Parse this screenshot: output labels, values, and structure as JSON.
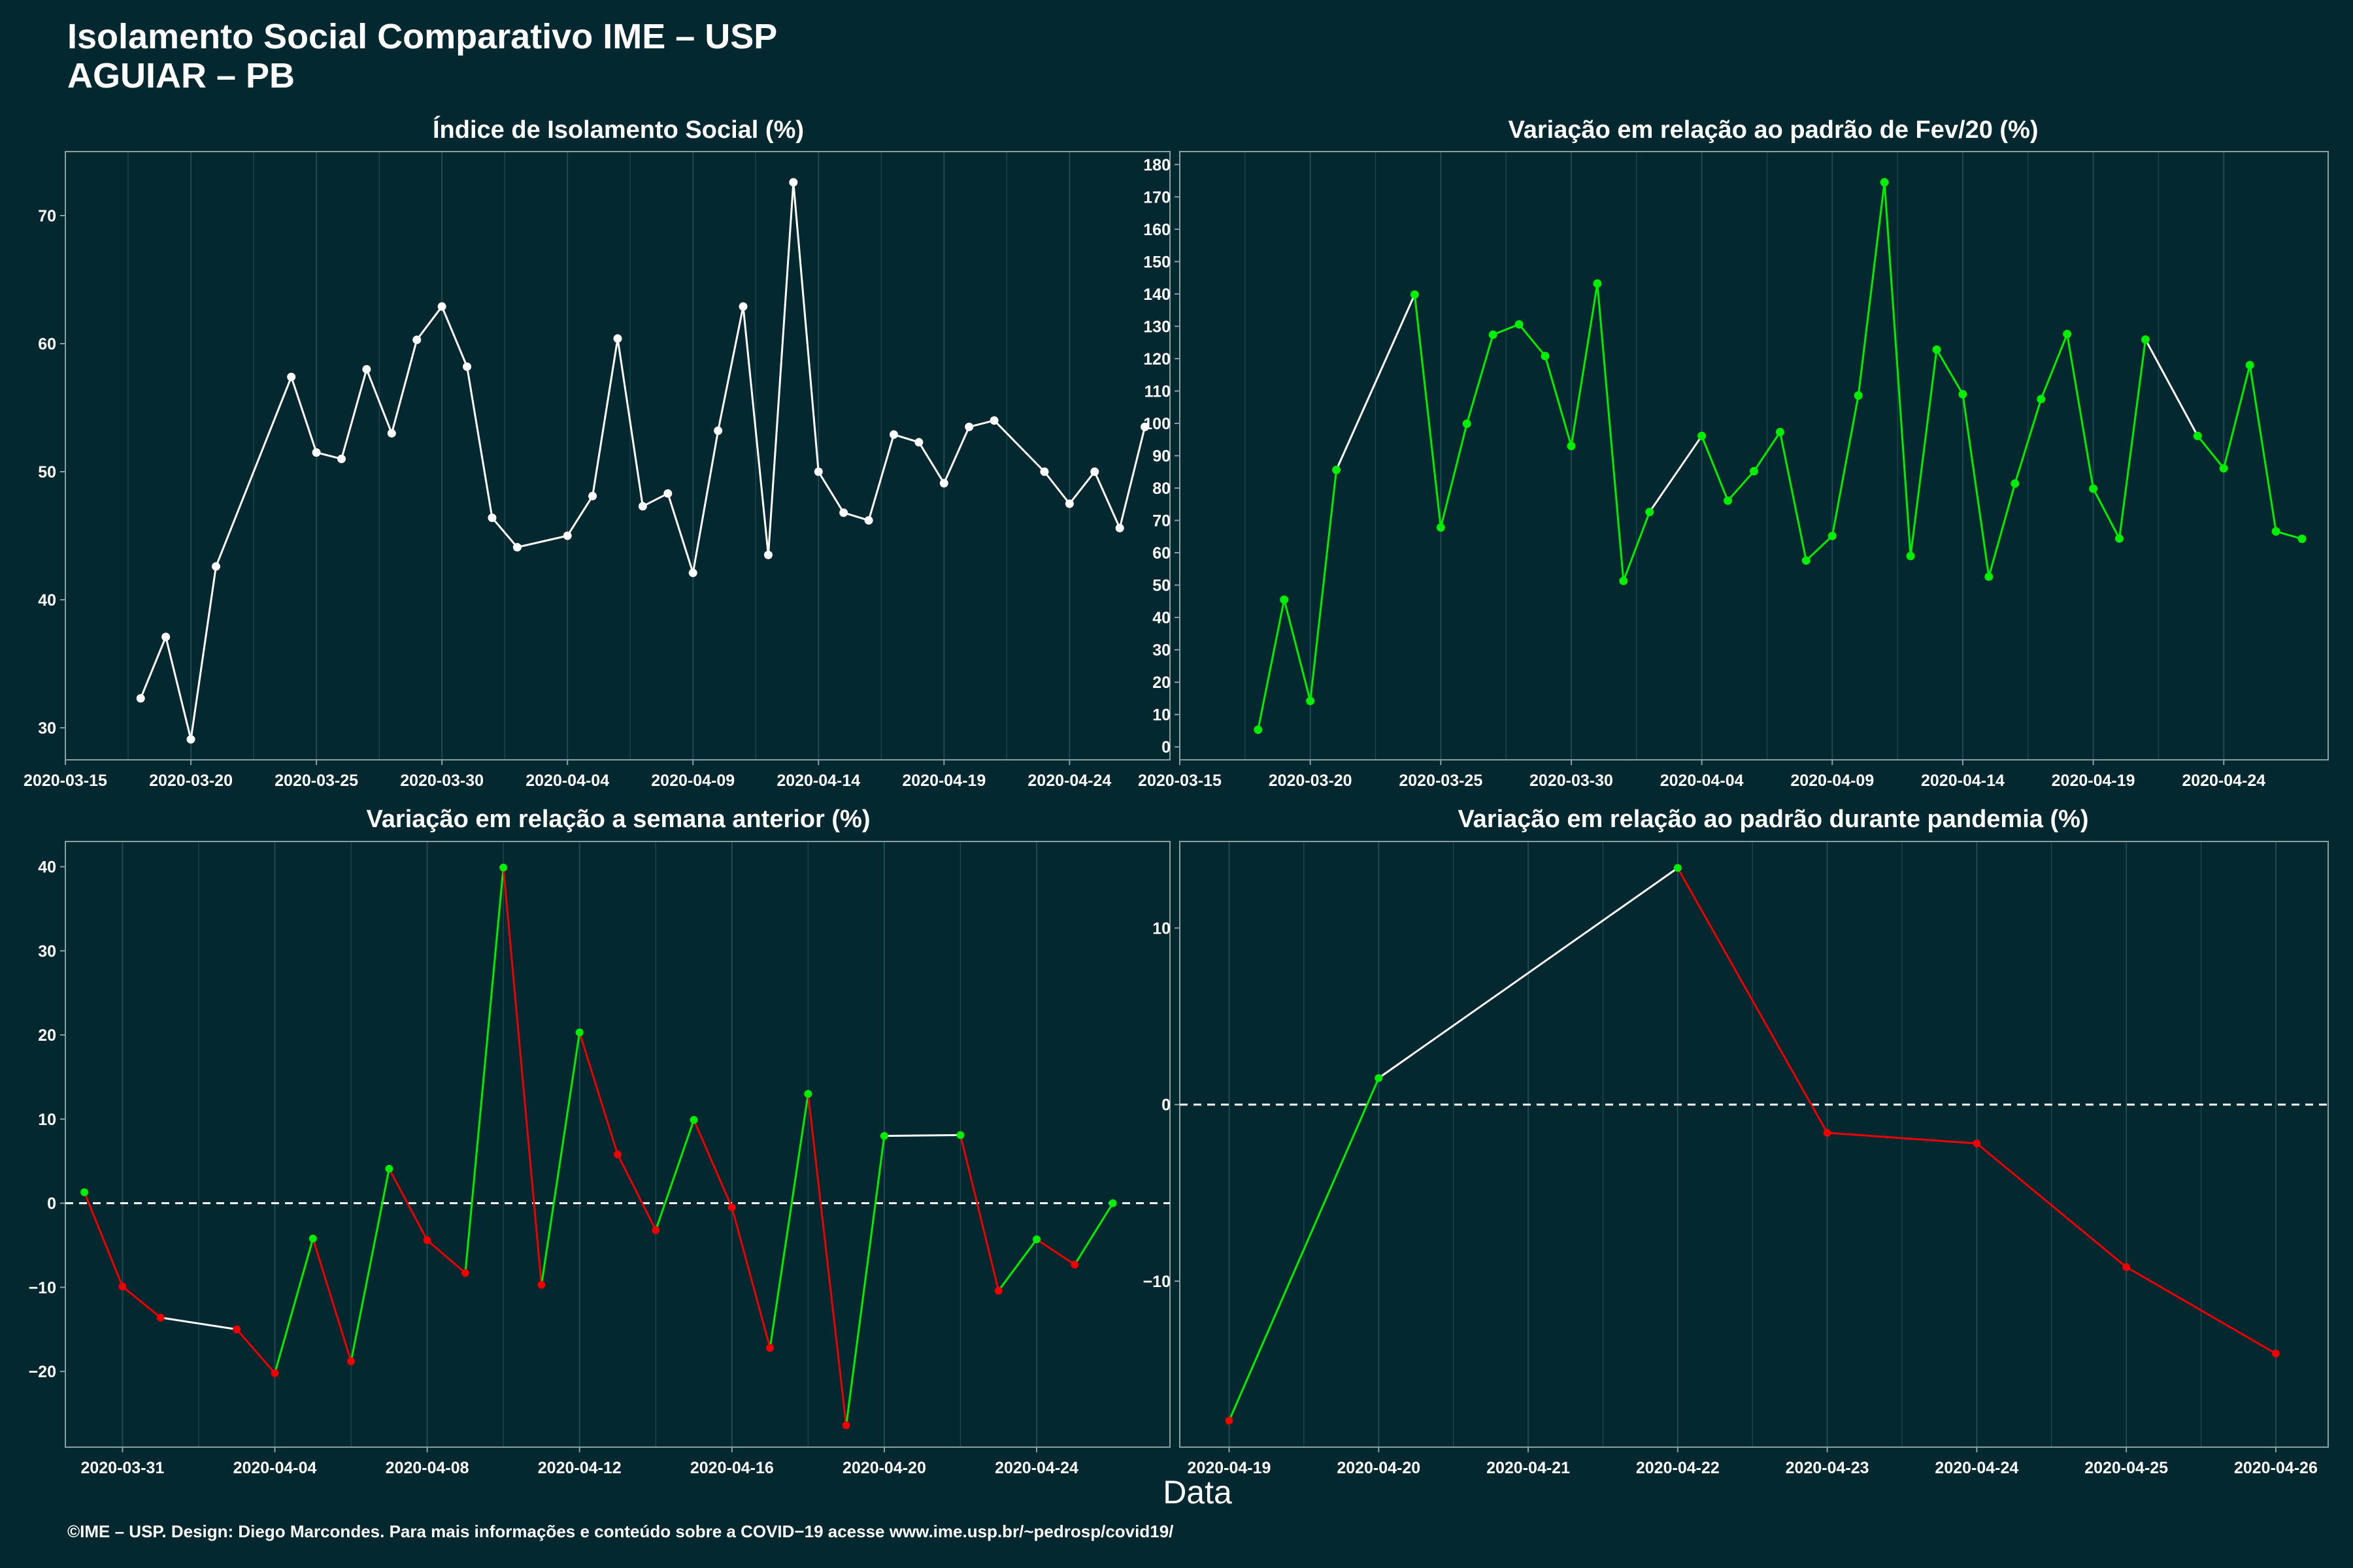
{
  "title": {
    "line1": "Isolamento Social Comparativo IME – USP",
    "line2": "AGUIAR – PB"
  },
  "xlabel": "Data",
  "footer": "©IME – USP. Design: Diego Marcondes. Para mais informações e conteúdo sobre a COVID−19 acesse www.ime.usp.br/~pedrosp/covid19/",
  "colors": {
    "background": "#04282f",
    "white": "#ffffff",
    "green": "#00ee00",
    "red": "#ee0000",
    "grid": "#1f4a52",
    "axis": "#8aa0a5"
  },
  "chart_data": [
    {
      "id": "p1",
      "type": "line",
      "title": "Índice de Isolamento Social (%)",
      "xlim": [
        "2020-03-15",
        "2020-04-28"
      ],
      "ylim": [
        27.5,
        75
      ],
      "yticks": [
        30,
        40,
        50,
        60,
        70
      ],
      "ytick_labels": [
        "30",
        "40",
        "50",
        "60",
        "70"
      ],
      "xticks": [
        "2020-03-15",
        "2020-03-20",
        "2020-03-25",
        "2020-03-30",
        "2020-04-04",
        "2020-04-09",
        "2020-04-14",
        "2020-04-19",
        "2020-04-24"
      ],
      "series": [
        {
          "x": [
            "2020-03-18",
            "2020-03-19",
            "2020-03-20",
            "2020-03-21",
            "2020-03-24",
            "2020-03-25",
            "2020-03-26",
            "2020-03-27",
            "2020-03-28",
            "2020-03-29",
            "2020-03-30",
            "2020-03-31",
            "2020-04-01",
            "2020-04-02",
            "2020-04-04",
            "2020-04-05",
            "2020-04-06",
            "2020-04-07",
            "2020-04-08",
            "2020-04-09",
            "2020-04-10",
            "2020-04-11",
            "2020-04-12",
            "2020-04-13",
            "2020-04-14",
            "2020-04-15",
            "2020-04-16",
            "2020-04-17",
            "2020-04-18",
            "2020-04-19",
            "2020-04-20",
            "2020-04-21",
            "2020-04-23",
            "2020-04-24",
            "2020-04-25",
            "2020-04-26",
            "2020-04-27"
          ],
          "y": [
            32.3,
            37.1,
            29.1,
            42.6,
            57.4,
            51.5,
            51.0,
            58.0,
            53.0,
            60.3,
            62.9,
            58.2,
            46.4,
            44.1,
            45.0,
            48.1,
            60.4,
            47.3,
            48.3,
            42.1,
            53.2,
            62.9,
            43.5,
            72.6,
            50.0,
            46.8,
            46.2,
            52.9,
            52.3,
            49.1,
            53.5,
            54.0,
            50.0,
            47.5,
            50.0,
            45.6,
            53.5
          ]
        }
      ]
    },
    {
      "id": "p2",
      "type": "line",
      "title": "Variação em relação ao padrão de Fev/20 (%)",
      "xlim": [
        "2020-03-15",
        "2020-04-28"
      ],
      "ylim": [
        -4,
        184
      ],
      "yticks": [
        0,
        10,
        20,
        30,
        40,
        50,
        60,
        70,
        80,
        90,
        100,
        110,
        120,
        130,
        140,
        150,
        160,
        170,
        180
      ],
      "ytick_labels": [
        "0",
        "10",
        "20",
        "30",
        "40",
        "50",
        "60",
        "70",
        "80",
        "90",
        "100",
        "110",
        "120",
        "130",
        "140",
        "150",
        "160",
        "170",
        "180"
      ],
      "xticks": [
        "2020-03-15",
        "2020-03-20",
        "2020-03-25",
        "2020-03-30",
        "2020-04-04",
        "2020-04-09",
        "2020-04-14",
        "2020-04-19",
        "2020-04-24"
      ],
      "series": [
        {
          "x": [
            "2020-03-18",
            "2020-03-19",
            "2020-03-20",
            "2020-03-21",
            "2020-03-24",
            "2020-03-25",
            "2020-03-26",
            "2020-03-27",
            "2020-03-28",
            "2020-03-29",
            "2020-03-30",
            "2020-03-31",
            "2020-04-01",
            "2020-04-02",
            "2020-04-04",
            "2020-04-05",
            "2020-04-06",
            "2020-04-07",
            "2020-04-08",
            "2020-04-09",
            "2020-04-10",
            "2020-04-11",
            "2020-04-12",
            "2020-04-13",
            "2020-04-14",
            "2020-04-15",
            "2020-04-16",
            "2020-04-17",
            "2020-04-18",
            "2020-04-19",
            "2020-04-20",
            "2020-04-21",
            "2020-04-23",
            "2020-04-24",
            "2020-04-25",
            "2020-04-26",
            "2020-04-27"
          ],
          "y": [
            5.3,
            45.5,
            14.2,
            85.6,
            139.8,
            67.8,
            99.9,
            127.4,
            130.6,
            120.8,
            93.0,
            143.2,
            51.3,
            72.6,
            96.1,
            76.1,
            85.2,
            97.3,
            57.6,
            65.2,
            108.6,
            174.5,
            59.0,
            122.8,
            109.0,
            52.6,
            81.4,
            107.5,
            127.6,
            79.8,
            64.4,
            125.9,
            96.1,
            86.1,
            118.0,
            66.6,
            64.3
          ]
        }
      ]
    },
    {
      "id": "p3",
      "type": "line",
      "title": "Variação em relação a semana anterior (%)",
      "xlim": [
        "2020-03-29.5",
        "2020-04-27.5"
      ],
      "ylim": [
        -29,
        43
      ],
      "yticks": [
        -20,
        -10,
        0,
        10,
        20,
        30,
        40
      ],
      "ytick_labels": [
        "−20",
        "−10",
        "0",
        "10",
        "20",
        "30",
        "40"
      ],
      "xticks": [
        "2020-03-31",
        "2020-04-04",
        "2020-04-08",
        "2020-04-12",
        "2020-04-16",
        "2020-04-20",
        "2020-04-24"
      ],
      "series": [
        {
          "x": [
            "2020-03-30",
            "2020-03-31",
            "2020-04-01",
            "2020-04-03",
            "2020-04-04",
            "2020-04-05",
            "2020-04-06",
            "2020-04-07",
            "2020-04-08",
            "2020-04-09",
            "2020-04-10",
            "2020-04-11",
            "2020-04-12",
            "2020-04-13",
            "2020-04-14",
            "2020-04-15",
            "2020-04-16",
            "2020-04-17",
            "2020-04-18",
            "2020-04-19",
            "2020-04-20",
            "2020-04-22",
            "2020-04-23",
            "2020-04-24",
            "2020-04-25",
            "2020-04-26"
          ],
          "y": [
            1.3,
            -9.9,
            -13.6,
            -15.0,
            -20.2,
            -4.2,
            -18.8,
            4.1,
            -4.4,
            -8.3,
            39.9,
            -9.7,
            20.3,
            5.8,
            -3.2,
            9.9,
            -0.5,
            -17.2,
            13.0,
            -26.4,
            8.0,
            8.1,
            -10.4,
            -4.3,
            -7.3,
            0.0
          ]
        }
      ],
      "hline": 0
    },
    {
      "id": "p4",
      "type": "line",
      "title": "Variação em relação ao padrão durante pandemia (%)",
      "xlim": [
        "2020-04-18.67",
        "2020-04-26.35"
      ],
      "ylim": [
        -19.4,
        14.9
      ],
      "yticks": [
        -10,
        0,
        10
      ],
      "ytick_labels": [
        "−10",
        "0",
        "10"
      ],
      "xticks": [
        "2020-04-19",
        "2020-04-20",
        "2020-04-21",
        "2020-04-22",
        "2020-04-23",
        "2020-04-24",
        "2020-04-25",
        "2020-04-26"
      ],
      "series": [
        {
          "x": [
            "2020-04-19",
            "2020-04-20",
            "2020-04-22",
            "2020-04-23",
            "2020-04-24",
            "2020-04-25",
            "2020-04-26"
          ],
          "y": [
            -17.9,
            1.5,
            13.4,
            -1.6,
            -2.2,
            -9.2,
            -14.1
          ]
        }
      ],
      "hline": 0
    }
  ]
}
